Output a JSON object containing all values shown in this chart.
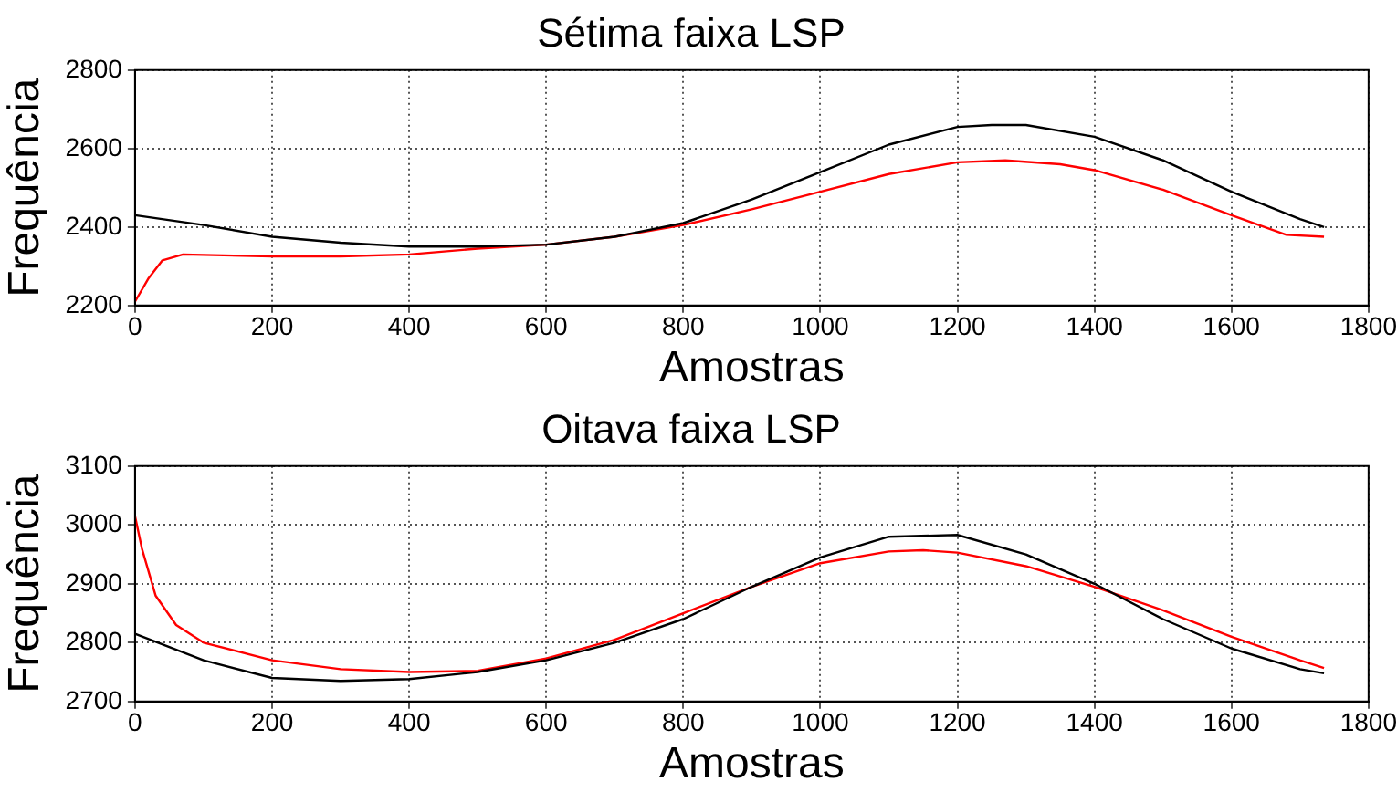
{
  "chart_data": [
    {
      "type": "line",
      "title": "Sétima faixa LSP",
      "xlabel": "Amostras",
      "ylabel": "Frequência",
      "xlim": [
        0,
        1800
      ],
      "xticks": [
        0,
        200,
        400,
        600,
        800,
        1000,
        1200,
        1400,
        1600,
        1800
      ],
      "ylim": [
        2200,
        2800
      ],
      "yticks": [
        2200,
        2400,
        2600,
        2800
      ],
      "grid": true,
      "legend": false,
      "marker": "none",
      "series": [
        {
          "color": "#000000",
          "x": [
            0,
            100,
            200,
            300,
            400,
            500,
            600,
            700,
            800,
            900,
            1000,
            1100,
            1200,
            1250,
            1300,
            1400,
            1500,
            1600,
            1700,
            1735
          ],
          "values": [
            2430,
            2405,
            2375,
            2360,
            2350,
            2350,
            2355,
            2375,
            2410,
            2470,
            2540,
            2610,
            2655,
            2660,
            2660,
            2630,
            2570,
            2490,
            2420,
            2400
          ]
        },
        {
          "color": "#ff0000",
          "x": [
            0,
            20,
            40,
            70,
            200,
            300,
            400,
            500,
            600,
            700,
            800,
            900,
            1000,
            1100,
            1200,
            1270,
            1350,
            1400,
            1500,
            1600,
            1680,
            1735
          ],
          "values": [
            2210,
            2270,
            2315,
            2330,
            2325,
            2325,
            2330,
            2345,
            2355,
            2375,
            2405,
            2445,
            2490,
            2535,
            2565,
            2570,
            2560,
            2545,
            2495,
            2430,
            2380,
            2375
          ]
        }
      ]
    },
    {
      "type": "line",
      "title": "Oitava faixa LSP",
      "xlabel": "Amostras",
      "ylabel": "Frequência",
      "xlim": [
        0,
        1800
      ],
      "xticks": [
        0,
        200,
        400,
        600,
        800,
        1000,
        1200,
        1400,
        1600,
        1800
      ],
      "ylim": [
        2700,
        3100
      ],
      "yticks": [
        2700,
        2800,
        2900,
        3000,
        3100
      ],
      "grid": true,
      "legend": false,
      "marker": "none",
      "series": [
        {
          "color": "#000000",
          "x": [
            0,
            100,
            200,
            300,
            400,
            500,
            600,
            700,
            800,
            900,
            1000,
            1100,
            1200,
            1300,
            1400,
            1500,
            1600,
            1700,
            1735
          ],
          "values": [
            2815,
            2770,
            2740,
            2735,
            2738,
            2750,
            2770,
            2800,
            2840,
            2895,
            2945,
            2980,
            2983,
            2950,
            2900,
            2840,
            2790,
            2755,
            2748
          ]
        },
        {
          "color": "#ff0000",
          "x": [
            0,
            10,
            30,
            60,
            100,
            200,
            300,
            400,
            500,
            600,
            700,
            800,
            900,
            1000,
            1100,
            1150,
            1200,
            1300,
            1400,
            1500,
            1600,
            1700,
            1735
          ],
          "values": [
            3015,
            2960,
            2880,
            2830,
            2800,
            2770,
            2755,
            2750,
            2752,
            2773,
            2805,
            2850,
            2895,
            2935,
            2955,
            2957,
            2953,
            2930,
            2895,
            2855,
            2810,
            2770,
            2757
          ]
        }
      ]
    }
  ]
}
